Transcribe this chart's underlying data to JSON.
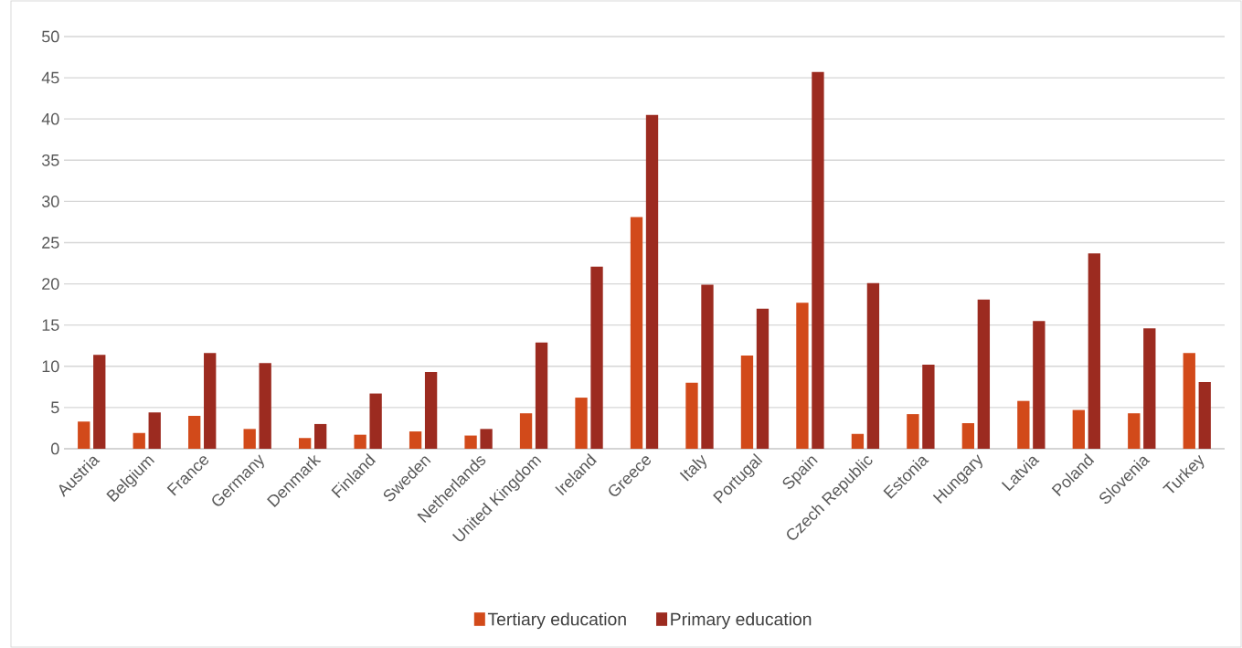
{
  "chart_data": {
    "type": "bar",
    "categories": [
      "Austria",
      "Belgium",
      "France",
      "Germany",
      "Denmark",
      "Finland",
      "Sweden",
      "Netherlands",
      "United Kingdom",
      "Ireland",
      "Greece",
      "Italy",
      "Portugal",
      "Spain",
      "Czech Republic",
      "Estonia",
      "Hungary",
      "Latvia",
      "Poland",
      "Slovenia",
      "Turkey"
    ],
    "series": [
      {
        "name": "Tertiary education",
        "color": "#d24a1a",
        "values": [
          3.3,
          1.9,
          4.0,
          2.4,
          1.3,
          1.7,
          2.1,
          1.6,
          4.3,
          6.2,
          28.1,
          8.0,
          11.3,
          17.7,
          1.8,
          4.2,
          3.1,
          5.8,
          4.7,
          4.3,
          11.6
        ]
      },
      {
        "name": "Primary education",
        "color": "#9c2b20",
        "values": [
          11.4,
          4.4,
          11.6,
          10.4,
          3.0,
          6.7,
          9.3,
          2.4,
          12.9,
          22.1,
          40.5,
          19.9,
          17.0,
          45.7,
          20.1,
          10.2,
          18.1,
          15.5,
          23.7,
          14.6,
          8.1
        ]
      }
    ],
    "ylim": [
      0,
      50
    ],
    "yticks": [
      0,
      5,
      10,
      15,
      20,
      25,
      30,
      35,
      40,
      45,
      50
    ],
    "grid": "y",
    "legend": "bottom"
  }
}
